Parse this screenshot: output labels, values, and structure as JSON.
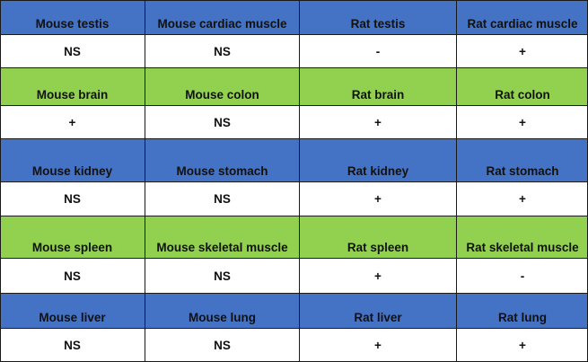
{
  "colors": {
    "blue": "#4472c4",
    "green": "#92d050",
    "white": "#ffffff",
    "border": "#1a1a1a"
  },
  "groups": [
    {
      "header_color": "blue",
      "tissues": [
        "Mouse testis",
        "Mouse cardiac muscle",
        "Rat testis",
        "Rat cardiac muscle"
      ],
      "results": [
        "NS",
        "NS",
        "-",
        "+"
      ]
    },
    {
      "header_color": "green",
      "tissues": [
        "Mouse brain",
        "Mouse colon",
        "Rat brain",
        "Rat colon"
      ],
      "results": [
        "+",
        "NS",
        "+",
        "+"
      ]
    },
    {
      "header_color": "blue",
      "tissues": [
        "Mouse kidney",
        "Mouse stomach",
        "Rat kidney",
        "Rat stomach"
      ],
      "results": [
        "NS",
        "NS",
        "+",
        "+"
      ]
    },
    {
      "header_color": "green",
      "tissues": [
        "Mouse spleen",
        "Mouse skeletal muscle",
        "Rat spleen",
        "Rat skeletal muscle"
      ],
      "results": [
        "NS",
        "NS",
        "+",
        "-"
      ]
    },
    {
      "header_color": "blue",
      "tissues": [
        "Mouse liver",
        "Mouse lung",
        "Rat liver",
        "Rat lung"
      ],
      "results": [
        "NS",
        "NS",
        "+",
        "+"
      ]
    }
  ]
}
